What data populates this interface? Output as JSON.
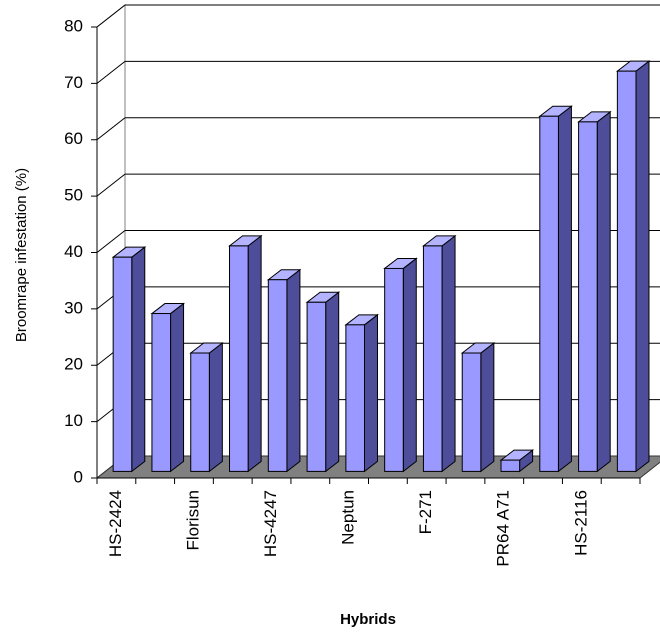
{
  "chart_data": {
    "type": "bar3d",
    "x_label": "Hybrids",
    "y_label": "Broomrape infestation (%)",
    "categories": [
      "HS-2424",
      null,
      "Florisun",
      null,
      "HS-4247",
      null,
      "Neptun",
      null,
      "F-271",
      null,
      "PR64 A71",
      null,
      "HS-2116",
      null
    ],
    "values": [
      38,
      28,
      21,
      40,
      34,
      30,
      26,
      36,
      40,
      21,
      2,
      63,
      62,
      71
    ],
    "color": "#9999ff",
    "ylim": [
      0,
      80
    ],
    "yticks": [
      0,
      10,
      20,
      30,
      40,
      50,
      60,
      70,
      80
    ],
    "grid": true
  }
}
